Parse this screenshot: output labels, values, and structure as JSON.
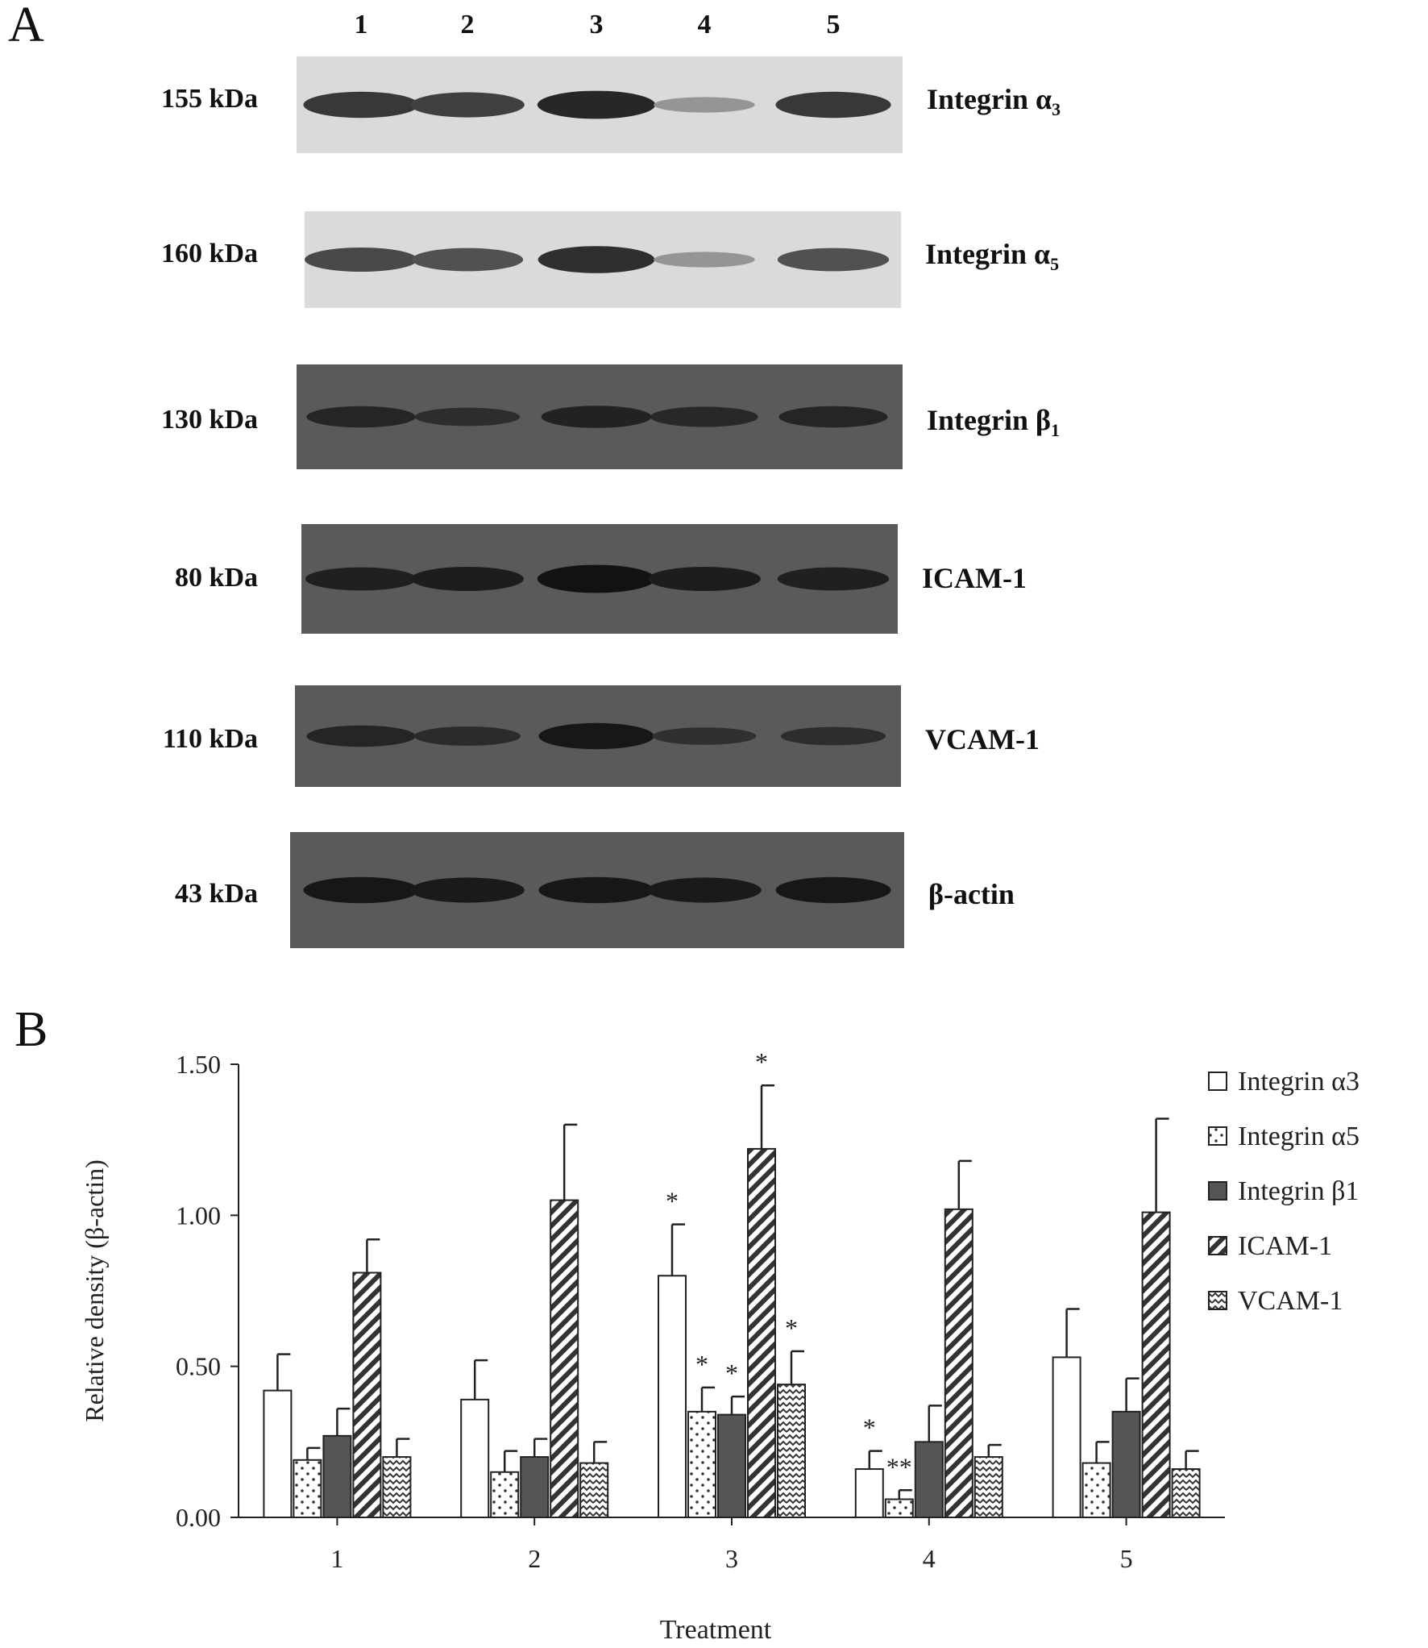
{
  "panel_a": {
    "letter": "A",
    "lanes": [
      "1",
      "2",
      "3",
      "4",
      "5"
    ],
    "blots": [
      {
        "kda": "155 kDa",
        "protein": "Integrin α",
        "sub": "3",
        "tone": "light",
        "band_intensity": [
          0.85,
          0.8,
          0.95,
          0.3,
          0.85
        ]
      },
      {
        "kda": "160 kDa",
        "protein": "Integrin α",
        "sub": "5",
        "tone": "light",
        "band_intensity": [
          0.75,
          0.7,
          0.9,
          0.3,
          0.7
        ]
      },
      {
        "kda": "130 kDa",
        "protein": "Integrin β",
        "sub": "1",
        "tone": "dark",
        "band_intensity": [
          0.6,
          0.45,
          0.65,
          0.55,
          0.6
        ]
      },
      {
        "kda": "80 kDa",
        "protein": "ICAM-1",
        "sub": "",
        "tone": "dark",
        "band_intensity": [
          0.7,
          0.75,
          0.95,
          0.75,
          0.7
        ]
      },
      {
        "kda": "110 kDa",
        "protein": "VCAM-1",
        "sub": "",
        "tone": "dark",
        "band_intensity": [
          0.6,
          0.5,
          0.85,
          0.4,
          0.45
        ]
      },
      {
        "kda": "43 kDa",
        "protein": "β-actin",
        "sub": "",
        "tone": "dark",
        "band_intensity": [
          0.85,
          0.8,
          0.85,
          0.8,
          0.85
        ]
      }
    ]
  },
  "chart_data": {
    "panel_letter": "B",
    "type": "bar",
    "xlabel": "Treatment",
    "ylabel": "Relative density (β-actin)",
    "ylim": [
      0,
      1.5
    ],
    "yticks": [
      "0.00",
      "0.50",
      "1.00",
      "1.50"
    ],
    "categories": [
      "1",
      "2",
      "3",
      "4",
      "5"
    ],
    "legend_position": "top-right",
    "series": [
      {
        "name": "Integrin α3",
        "pattern": "white",
        "values": [
          0.42,
          0.39,
          0.8,
          0.16,
          0.53
        ],
        "errors": [
          0.12,
          0.13,
          0.17,
          0.06,
          0.16
        ],
        "stars": [
          "",
          "",
          "*",
          "*",
          ""
        ]
      },
      {
        "name": "Integrin α5",
        "pattern": "dots",
        "values": [
          0.19,
          0.15,
          0.35,
          0.06,
          0.18
        ],
        "errors": [
          0.04,
          0.07,
          0.08,
          0.03,
          0.07
        ],
        "stars": [
          "",
          "",
          "*",
          "**",
          ""
        ]
      },
      {
        "name": "Integrin β1",
        "pattern": "gray",
        "values": [
          0.27,
          0.2,
          0.34,
          0.25,
          0.35
        ],
        "errors": [
          0.09,
          0.06,
          0.06,
          0.12,
          0.11
        ],
        "stars": [
          "",
          "",
          "*",
          "",
          ""
        ]
      },
      {
        "name": "ICAM-1",
        "pattern": "diagonal",
        "values": [
          0.81,
          1.05,
          1.22,
          1.02,
          1.01
        ],
        "errors": [
          0.11,
          0.25,
          0.21,
          0.16,
          0.31
        ],
        "stars": [
          "",
          "",
          "*",
          "",
          ""
        ]
      },
      {
        "name": "VCAM-1",
        "pattern": "zigzag",
        "values": [
          0.2,
          0.18,
          0.44,
          0.2,
          0.16
        ],
        "errors": [
          0.06,
          0.07,
          0.11,
          0.04,
          0.06
        ],
        "stars": [
          "",
          "",
          "*",
          "",
          ""
        ]
      }
    ]
  }
}
